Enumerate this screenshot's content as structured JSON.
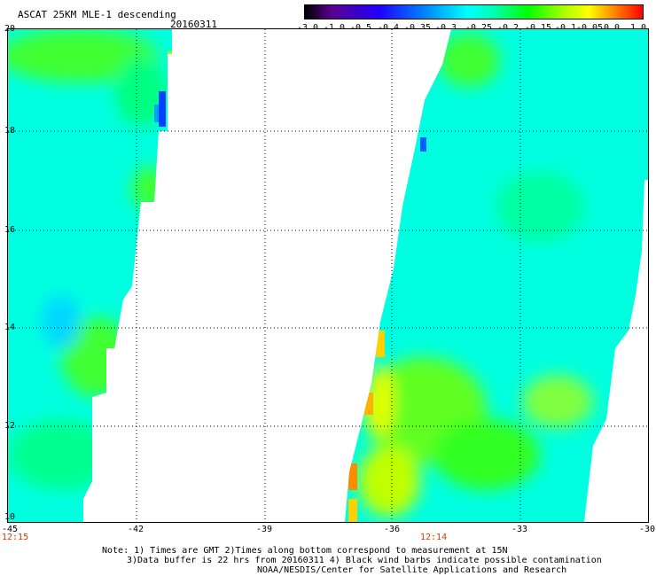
{
  "header": {
    "title": "ASCAT 25KM MLE-1 descending",
    "date": "20160311"
  },
  "colorbar": {
    "labels": [
      "-3.0",
      "-1.0",
      "-0.5",
      "-0.4",
      "-0.35",
      "-0.3",
      "-0.25",
      "-0.2",
      "-0.15",
      "-0.1",
      "-0.05",
      "0.0",
      "1.0"
    ]
  },
  "map": {
    "lat_labels": [
      "20",
      "18",
      "16",
      "14",
      "12",
      "10"
    ],
    "lon_labels": [
      "-45",
      "-42",
      "-39",
      "-36",
      "-33",
      "-30"
    ],
    "pass_times": {
      "left": "12:15",
      "right": "12:14"
    }
  },
  "footer": {
    "line1": "Note: 1) Times are GMT 2)Times along bottom correspond to measurement at 15N",
    "line2": "3)Data buffer is 22 hrs from 20160311 4) Black wind barbs indicate possible contamination",
    "line3": "NOAA/NESDIS/Center for Satellite Applications and Research"
  },
  "colors": {
    "swath_base": "#00ffdc",
    "swath_green": "#4cff20",
    "highlight_yellow": "#f0ff00",
    "highlight_orange": "#ff8c00",
    "time_red": "#d33a00"
  }
}
